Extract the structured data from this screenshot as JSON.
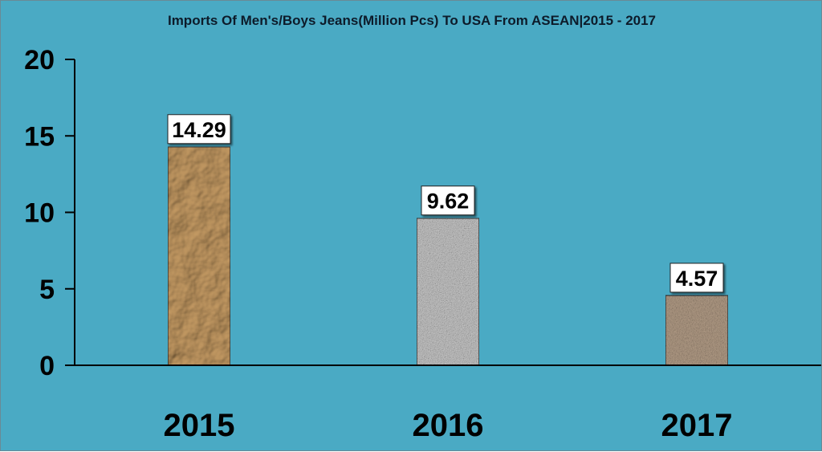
{
  "chart_data": {
    "type": "bar",
    "title": "Imports Of Men's/Boys Jeans(Million Pcs) To USA From ASEAN|2015 - 2017",
    "xlabel": "",
    "ylabel": "",
    "categories": [
      "2015",
      "2016",
      "2017"
    ],
    "values": [
      14.29,
      9.62,
      4.57
    ],
    "data_labels": [
      "14.29",
      "9.62",
      "4.57"
    ],
    "ylim": [
      0,
      20
    ],
    "yticks": [
      0,
      5,
      10,
      15,
      20
    ],
    "ytick_labels": [
      "0",
      "5",
      "10",
      "15",
      "20"
    ],
    "grid": false,
    "legend": "none",
    "colors": {
      "background": "#4aaac4",
      "bars": [
        "#c49a63",
        "#c8c8c8",
        "#b29c86"
      ],
      "axis": "#000000"
    }
  }
}
